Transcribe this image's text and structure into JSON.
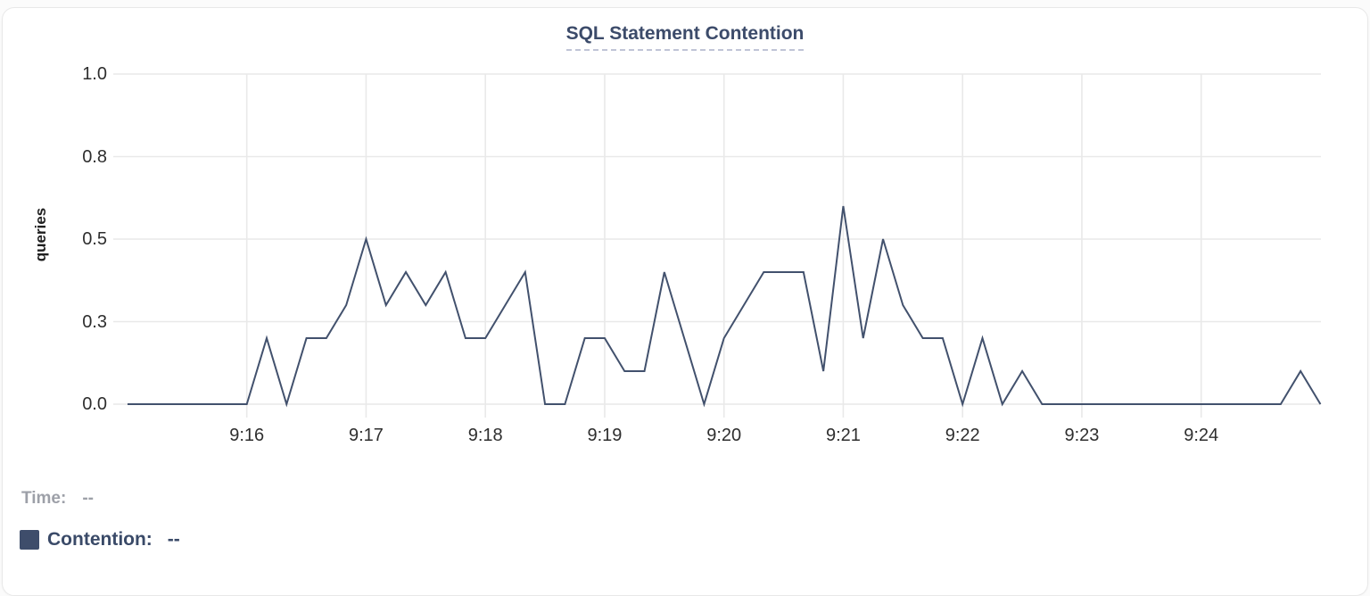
{
  "chart_data": {
    "type": "line",
    "title": "SQL Statement Contention",
    "ylabel": "queries",
    "ylim": [
      0,
      1.0
    ],
    "grid": true,
    "y_tick_labels": [
      "1.0",
      "0.8",
      "0.5",
      "0.3",
      "0.0"
    ],
    "y_tick_values": [
      1.0,
      0.75,
      0.5,
      0.25,
      0.0
    ],
    "x_tick_labels": [
      "9:16",
      "9:17",
      "9:18",
      "9:19",
      "9:20",
      "9:21",
      "9:22",
      "9:23",
      "9:24"
    ],
    "x_range": {
      "start": "9:15:00",
      "end": "9:25:00",
      "interval_seconds": 10
    },
    "series": [
      {
        "name": "Contention",
        "color": "#42516d",
        "values": [
          0,
          0,
          0,
          0,
          0,
          0,
          0,
          0.2,
          0,
          0.2,
          0.2,
          0.3,
          0.5,
          0.3,
          0.4,
          0.3,
          0.4,
          0.2,
          0.2,
          0.3,
          0.4,
          0,
          0,
          0.2,
          0.2,
          0.1,
          0.1,
          0.4,
          0.2,
          0,
          0.2,
          0.3,
          0.4,
          0.4,
          0.4,
          0.1,
          0.6,
          0.2,
          0.5,
          0.3,
          0.2,
          0.2,
          0,
          0.2,
          0,
          0.1,
          0,
          0,
          0,
          0,
          0,
          0,
          0,
          0,
          0,
          0,
          0,
          0,
          0,
          0.1,
          0
        ]
      }
    ]
  },
  "legend": {
    "time_label": "Time:",
    "time_value": "--",
    "series_label": "Contention:",
    "series_value": "--",
    "swatch_color": "#3e4d6b"
  },
  "colors": {
    "title": "#3c4b6a",
    "axis_text": "#2e2e2e",
    "grid": "#e9e9e9",
    "time_text": "#9da0a8",
    "series_text": "#3a4a68"
  }
}
